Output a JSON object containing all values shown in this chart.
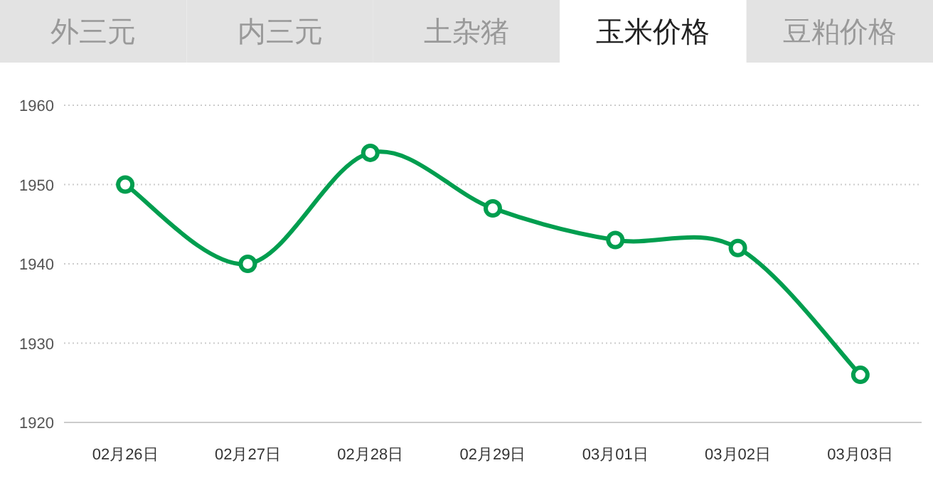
{
  "chart_data": {
    "type": "line",
    "annotations": [
      "外三元",
      "内三元",
      "土杂猪",
      "玉米价格",
      "豆粕价格"
    ],
    "categories": [
      "02月26日",
      "02月27日",
      "02月28日",
      "02月29日",
      "03月01日",
      "03月02日",
      "03月03日"
    ],
    "series": [
      {
        "color": "#009e4f",
        "values": [
          1950,
          1940,
          1954,
          1947,
          1943,
          1942,
          1926
        ]
      }
    ],
    "ylim": [
      1920,
      1960
    ],
    "yticks": [
      1920,
      1930,
      1940,
      1950,
      1960
    ],
    "grid": "y",
    "marker": "circle",
    "line_style": "solid"
  }
}
